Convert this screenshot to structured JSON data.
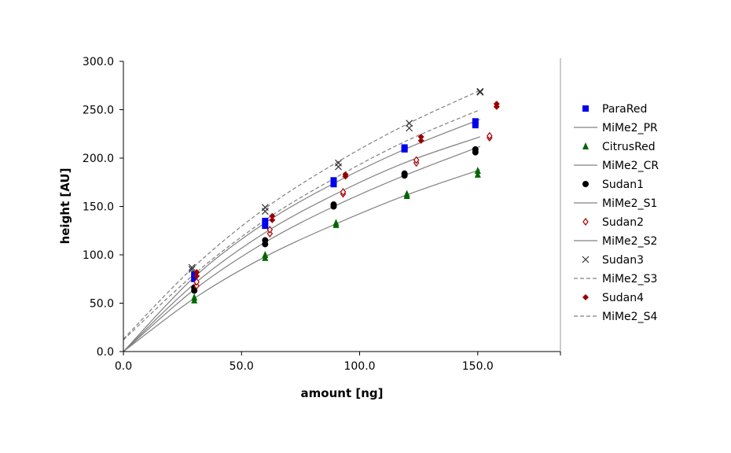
{
  "chart_data": {
    "type": "scatter",
    "xlabel": "amount [ng]",
    "ylabel": "height [AU]",
    "xlim": [
      0,
      185
    ],
    "ylim": [
      0,
      300
    ],
    "xticks": [
      "0.0",
      "50.0",
      "100.0",
      "150.0"
    ],
    "yticks": [
      "0.0",
      "50.0",
      "100.0",
      "150.0",
      "200.0",
      "250.0",
      "300.0"
    ],
    "grid": false,
    "legend_position": "right",
    "series": [
      {
        "name": "ParaRed",
        "kind": "points",
        "marker": "square",
        "color": "#0000ee",
        "points": [
          [
            30,
            75
          ],
          [
            30,
            80
          ],
          [
            60,
            130
          ],
          [
            60,
            135
          ],
          [
            89,
            173
          ],
          [
            89,
            177
          ],
          [
            119,
            209
          ],
          [
            119,
            211
          ],
          [
            149,
            234
          ],
          [
            149,
            238
          ]
        ]
      },
      {
        "name": "MiMe2_PR",
        "kind": "fit",
        "dash": false,
        "color": "#808080",
        "points": [
          [
            0,
            0
          ],
          [
            30,
            77
          ],
          [
            60,
            133
          ],
          [
            90,
            175
          ],
          [
            120,
            210
          ],
          [
            151,
            240
          ]
        ]
      },
      {
        "name": "CitrusRed",
        "kind": "points",
        "marker": "triangle",
        "color": "#006600",
        "points": [
          [
            30,
            53
          ],
          [
            30,
            56
          ],
          [
            60,
            97
          ],
          [
            60,
            100
          ],
          [
            90,
            131
          ],
          [
            90,
            133
          ],
          [
            120,
            161
          ],
          [
            120,
            163
          ],
          [
            150,
            183
          ],
          [
            150,
            187
          ]
        ]
      },
      {
        "name": "MiMe2_CR",
        "kind": "fit",
        "dash": false,
        "color": "#808080",
        "points": [
          [
            0,
            0
          ],
          [
            30,
            55
          ],
          [
            60,
            98
          ],
          [
            90,
            132
          ],
          [
            120,
            162
          ],
          [
            151,
            188
          ]
        ]
      },
      {
        "name": "Sudan1",
        "kind": "points",
        "marker": "circle",
        "color": "#000000",
        "points": [
          [
            30,
            63
          ],
          [
            30,
            66
          ],
          [
            60,
            111
          ],
          [
            60,
            115
          ],
          [
            89,
            150
          ],
          [
            89,
            152
          ],
          [
            119,
            182
          ],
          [
            119,
            184
          ],
          [
            149,
            206
          ],
          [
            149,
            209
          ]
        ]
      },
      {
        "name": "MiMe2_S1",
        "kind": "fit",
        "dash": false,
        "color": "#808080",
        "points": [
          [
            0,
            0
          ],
          [
            30,
            64
          ],
          [
            60,
            113
          ],
          [
            90,
            151
          ],
          [
            120,
            183
          ],
          [
            151,
            212
          ]
        ]
      },
      {
        "name": "Sudan2",
        "kind": "points",
        "marker": "diamond-open",
        "color": "#aa0000",
        "points": [
          [
            31,
            68
          ],
          [
            31,
            72
          ],
          [
            62,
            122
          ],
          [
            62,
            126
          ],
          [
            93,
            163
          ],
          [
            93,
            165
          ],
          [
            124,
            195
          ],
          [
            124,
            198
          ],
          [
            155,
            221
          ],
          [
            155,
            223
          ]
        ]
      },
      {
        "name": "MiMe2_S2",
        "kind": "fit",
        "dash": false,
        "color": "#808080",
        "points": [
          [
            0,
            0
          ],
          [
            30,
            70
          ],
          [
            60,
            123
          ],
          [
            90,
            163
          ],
          [
            120,
            196
          ],
          [
            151,
            222
          ]
        ]
      },
      {
        "name": "Sudan3",
        "kind": "points",
        "marker": "x",
        "color": "#333333",
        "points": [
          [
            29,
            85
          ],
          [
            29,
            87
          ],
          [
            60,
            145
          ],
          [
            60,
            149
          ],
          [
            91,
            191
          ],
          [
            91,
            195
          ],
          [
            121,
            231
          ],
          [
            121,
            236
          ],
          [
            151,
            268
          ],
          [
            151,
            269
          ]
        ]
      },
      {
        "name": "MiMe2_S3",
        "kind": "fit",
        "dash": true,
        "color": "#808080",
        "points": [
          [
            0,
            13
          ],
          [
            30,
            88
          ],
          [
            60,
            148
          ],
          [
            90,
            195
          ],
          [
            120,
            235
          ],
          [
            151,
            270
          ]
        ]
      },
      {
        "name": "Sudan4",
        "kind": "points",
        "marker": "diamond",
        "color": "#990000",
        "points": [
          [
            31,
            78
          ],
          [
            31,
            82
          ],
          [
            63,
            136
          ],
          [
            63,
            140
          ],
          [
            94,
            181
          ],
          [
            94,
            183
          ],
          [
            126,
            218
          ],
          [
            126,
            222
          ],
          [
            158,
            253
          ],
          [
            158,
            256
          ]
        ]
      },
      {
        "name": "MiMe2_S4",
        "kind": "fit",
        "dash": true,
        "color": "#808080",
        "points": [
          [
            0,
            12
          ],
          [
            30,
            80
          ],
          [
            60,
            136
          ],
          [
            90,
            180
          ],
          [
            120,
            218
          ],
          [
            151,
            250
          ]
        ]
      }
    ]
  }
}
